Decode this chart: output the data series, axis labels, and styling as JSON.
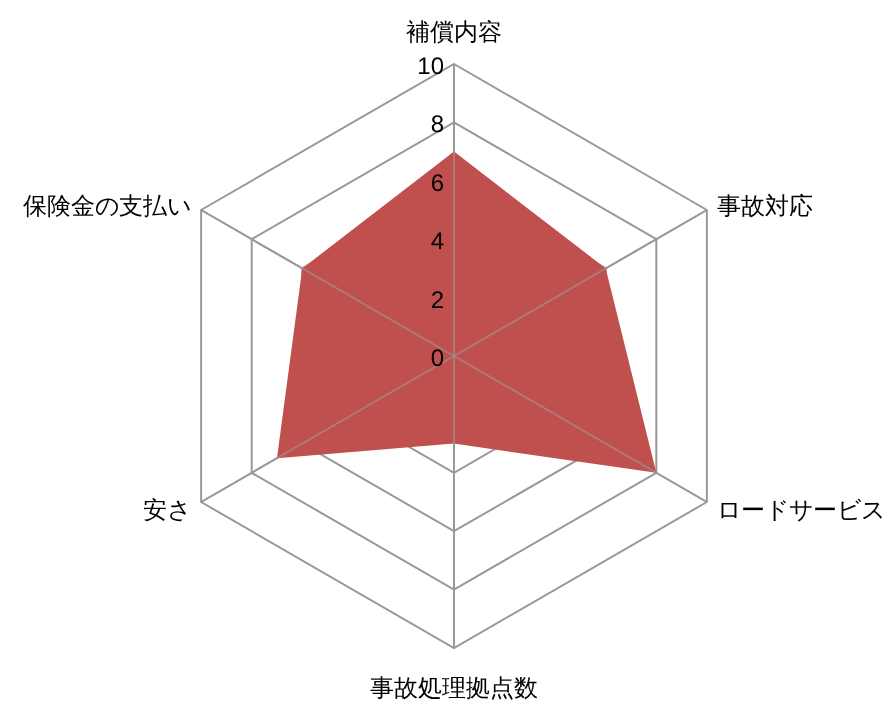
{
  "chart_data": {
    "type": "radar",
    "categories": [
      "補償内容",
      "事故対応",
      "ロードサービス",
      "事故処理拠点数",
      "安さ",
      "保険金の支払い"
    ],
    "series": [
      {
        "color": "#c0504d",
        "values": [
          7,
          6,
          8,
          3,
          7,
          6
        ]
      }
    ],
    "ylim": [
      0,
      10
    ],
    "yticks": [
      0,
      2,
      4,
      6,
      8,
      10
    ],
    "grid": true
  }
}
